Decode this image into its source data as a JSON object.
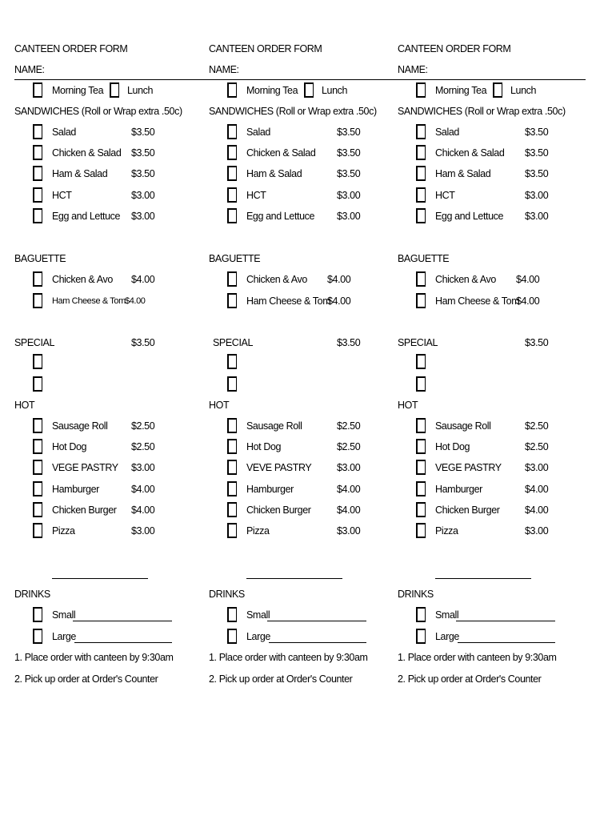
{
  "forms": [
    {
      "title": "CANTEEN ORDER FORM",
      "name_label": "NAME:",
      "meals": [
        "Morning Tea",
        "Lunch"
      ],
      "sandwiches": {
        "heading": "SANDWICHES  (Roll or Wrap  extra .50c)",
        "items": [
          {
            "name": "Salad",
            "price": "$3.50"
          },
          {
            "name": "Chicken & Salad",
            "price": "$3.50"
          },
          {
            "name": "Ham & Salad",
            "price": "$3.50"
          },
          {
            "name": "HCT",
            "price": "$3.00"
          },
          {
            "name": "Egg and Lettuce",
            "price": "$3.00"
          }
        ]
      },
      "baguette": {
        "heading": "BAGUETTE",
        "items": [
          {
            "name": "Chicken & Avo",
            "price": "$4.00"
          },
          {
            "name": "Ham Cheese & Tom",
            "price": "$4.00"
          }
        ]
      },
      "special": {
        "heading": "SPECIAL",
        "price": "$3.50"
      },
      "hot": {
        "heading": "HOT",
        "items": [
          {
            "name": "Sausage Roll",
            "price": "$2.50"
          },
          {
            "name": "Hot Dog",
            "price": "$2.50"
          },
          {
            "name": "VEGE PASTRY",
            "price": "$3.00"
          },
          {
            "name": "Hamburger",
            "price": "$4.00"
          },
          {
            "name": "Chicken Burger",
            "price": "$4.00"
          },
          {
            "name": "Pizza",
            "price": "$3.00"
          }
        ]
      },
      "drinks": {
        "heading": "DRINKS",
        "items": [
          "Small",
          "Large"
        ]
      },
      "notes": [
        "1. Place order with canteen by 9:30am",
        "2. Pick up order at Order's Counter"
      ]
    },
    {
      "title": "CANTEEN ORDER FORM",
      "name_label": "NAME:",
      "meals": [
        "Morning Tea",
        "Lunch"
      ],
      "sandwiches": {
        "heading": "SANDWICHES  (Roll or Wrap  extra .50c)",
        "items": [
          {
            "name": "Salad",
            "price": "$3.50"
          },
          {
            "name": "Chicken & Salad",
            "price": "$3.50"
          },
          {
            "name": "Ham & Salad",
            "price": "$3.50"
          },
          {
            "name": "HCT",
            "price": "$3.00"
          },
          {
            "name": "Egg and Lettuce",
            "price": "$3.00"
          }
        ]
      },
      "baguette": {
        "heading": "BAGUETTE",
        "items": [
          {
            "name": "Chicken & Avo",
            "price": "$4.00"
          },
          {
            "name": "Ham Cheese & Tom",
            "price": "$4.00"
          }
        ]
      },
      "special": {
        "heading": "SPECIAL",
        "price": "$3.50"
      },
      "hot": {
        "heading": "HOT",
        "items": [
          {
            "name": "Sausage Roll",
            "price": "$2.50"
          },
          {
            "name": "Hot Dog",
            "price": "$2.50"
          },
          {
            "name": "VEVE PASTRY",
            "price": "$3.00"
          },
          {
            "name": "Hamburger",
            "price": "$4.00"
          },
          {
            "name": "Chicken Burger",
            "price": "$4.00"
          },
          {
            "name": "Pizza",
            "price": "$3.00"
          }
        ]
      },
      "drinks": {
        "heading": "DRINKS",
        "items": [
          "Small",
          "Large"
        ]
      },
      "notes": [
        "1. Place order with canteen by 9:30am",
        "2. Pick up order at Order's Counter"
      ]
    },
    {
      "title": "CANTEEN ORDER FORM",
      "name_label": "NAME:",
      "meals": [
        "Morning Tea",
        "Lunch"
      ],
      "sandwiches": {
        "heading": "SANDWICHES  (Roll or Wrap  extra .50c)",
        "items": [
          {
            "name": "Salad",
            "price": "$3.50"
          },
          {
            "name": "Chicken & Salad",
            "price": "$3.50"
          },
          {
            "name": "Ham & Salad",
            "price": "$3.50"
          },
          {
            "name": "HCT",
            "price": "$3.00"
          },
          {
            "name": "Egg and Lettuce",
            "price": "$3.00"
          }
        ]
      },
      "baguette": {
        "heading": "BAGUETTE",
        "items": [
          {
            "name": "Chicken & Avo",
            "price": "$4.00"
          },
          {
            "name": "Ham Cheese & Tom",
            "price": "$4.00"
          }
        ]
      },
      "special": {
        "heading": "SPECIAL",
        "price": "$3.50"
      },
      "hot": {
        "heading": "HOT",
        "items": [
          {
            "name": "Sausage Roll",
            "price": "$2.50"
          },
          {
            "name": "Hot Dog",
            "price": "$2.50"
          },
          {
            "name": "VEGE PASTRY",
            "price": "$3.00"
          },
          {
            "name": "Hamburger",
            "price": "$4.00"
          },
          {
            "name": "Chicken Burger",
            "price": "$4.00"
          },
          {
            "name": "Pizza",
            "price": "$3.00"
          }
        ]
      },
      "drinks": {
        "heading": "DRINKS",
        "items": [
          "Small",
          "Large"
        ]
      },
      "notes": [
        "1. Place order with canteen by 9:30am",
        "2. Pick up order at Order's Counter"
      ]
    }
  ]
}
